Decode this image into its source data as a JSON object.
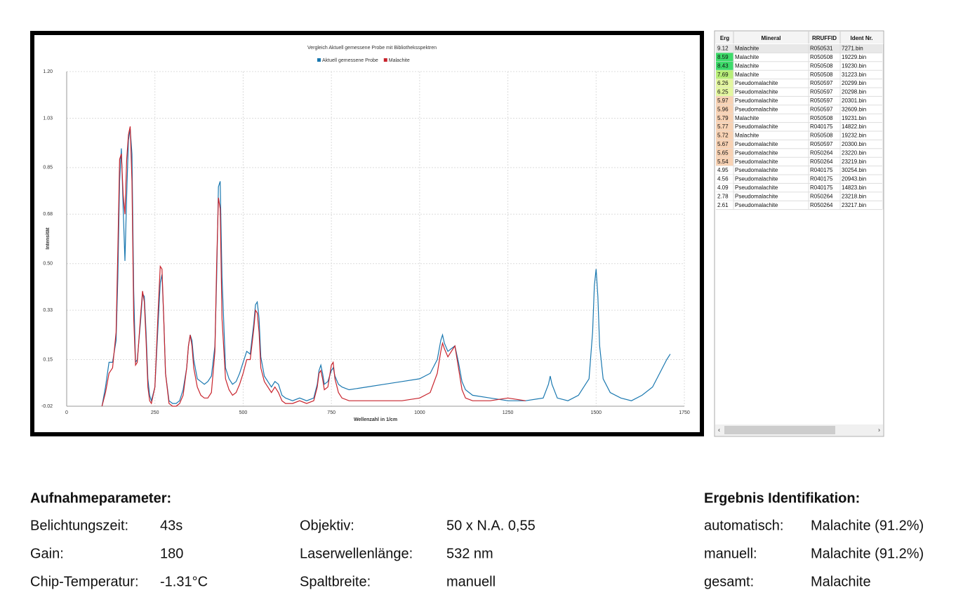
{
  "chart_data": {
    "type": "line",
    "title": "Vergleich Aktuell gemessene Probe mit Bibliotheksspektren",
    "xlabel": "Wellenzahl in 1/cm",
    "ylabel": "Intensität",
    "xlim": [
      0,
      1750
    ],
    "xticks": [
      0,
      250,
      500,
      750,
      1000,
      1250,
      1500,
      1750
    ],
    "ylim": [
      -0.02,
      1.2
    ],
    "yticks": [
      -0.02,
      0.15,
      0.33,
      {
        "value": 0.5,
        "label": "0.50"
      },
      0.68,
      0.85,
      1.03,
      {
        "value": 1.2,
        "label": "1.20"
      }
    ],
    "grid": true,
    "legend": "top",
    "x": [
      100,
      110,
      120,
      130,
      140,
      145,
      150,
      155,
      160,
      165,
      170,
      175,
      180,
      185,
      190,
      195,
      200,
      210,
      215,
      220,
      225,
      230,
      235,
      240,
      250,
      260,
      265,
      270,
      275,
      280,
      290,
      300,
      310,
      320,
      330,
      340,
      345,
      350,
      355,
      360,
      370,
      380,
      390,
      400,
      410,
      420,
      425,
      430,
      435,
      440,
      450,
      460,
      470,
      480,
      490,
      500,
      510,
      520,
      530,
      535,
      540,
      545,
      550,
      560,
      570,
      580,
      590,
      600,
      610,
      620,
      640,
      660,
      680,
      700,
      710,
      715,
      720,
      725,
      730,
      740,
      750,
      755,
      760,
      770,
      780,
      800,
      850,
      900,
      950,
      1000,
      1030,
      1050,
      1060,
      1065,
      1070,
      1080,
      1090,
      1100,
      1110,
      1120,
      1130,
      1150,
      1200,
      1250,
      1300,
      1350,
      1365,
      1370,
      1375,
      1390,
      1420,
      1450,
      1470,
      1480,
      1490,
      1495,
      1500,
      1505,
      1510,
      1520,
      1540,
      1570,
      1600,
      1630,
      1660,
      1680,
      1700,
      1710
    ],
    "series": [
      {
        "name": "Aktuell gemessene Probe",
        "color": "#1a78b0",
        "values": [
          -0.02,
          0.05,
          0.14,
          0.14,
          0.22,
          0.45,
          0.8,
          0.92,
          0.7,
          0.51,
          0.75,
          0.95,
          0.99,
          0.9,
          0.4,
          0.14,
          0.15,
          0.3,
          0.39,
          0.38,
          0.25,
          0.08,
          0.02,
          0.0,
          0.05,
          0.3,
          0.43,
          0.46,
          0.3,
          0.1,
          0.0,
          -0.01,
          -0.01,
          0.0,
          0.04,
          0.12,
          0.2,
          0.24,
          0.22,
          0.15,
          0.08,
          0.07,
          0.06,
          0.07,
          0.09,
          0.2,
          0.45,
          0.78,
          0.8,
          0.45,
          0.12,
          0.08,
          0.06,
          0.07,
          0.1,
          0.14,
          0.18,
          0.17,
          0.28,
          0.35,
          0.36,
          0.3,
          0.16,
          0.09,
          0.07,
          0.05,
          0.07,
          0.06,
          0.02,
          0.01,
          0.0,
          0.01,
          0.0,
          0.01,
          0.06,
          0.11,
          0.13,
          0.1,
          0.06,
          0.07,
          0.11,
          0.12,
          0.09,
          0.06,
          0.05,
          0.04,
          0.05,
          0.06,
          0.07,
          0.08,
          0.1,
          0.15,
          0.22,
          0.24,
          0.21,
          0.18,
          0.19,
          0.2,
          0.14,
          0.07,
          0.04,
          0.02,
          0.01,
          0.0,
          0.0,
          0.01,
          0.06,
          0.09,
          0.06,
          0.01,
          0.0,
          0.02,
          0.06,
          0.08,
          0.25,
          0.42,
          0.48,
          0.38,
          0.2,
          0.08,
          0.03,
          0.01,
          0.0,
          0.02,
          0.05,
          0.1,
          0.15,
          0.17
        ]
      },
      {
        "name": "Malachite",
        "color": "#c8232c",
        "values": [
          -0.02,
          0.03,
          0.1,
          0.12,
          0.25,
          0.55,
          0.88,
          0.9,
          0.75,
          0.68,
          0.88,
          0.97,
          1.0,
          0.8,
          0.3,
          0.13,
          0.14,
          0.32,
          0.4,
          0.36,
          0.22,
          0.05,
          0.0,
          -0.01,
          0.05,
          0.35,
          0.49,
          0.48,
          0.3,
          0.1,
          -0.01,
          -0.02,
          -0.02,
          -0.01,
          0.02,
          0.12,
          0.2,
          0.24,
          0.2,
          0.12,
          0.05,
          0.02,
          0.01,
          0.01,
          0.03,
          0.18,
          0.5,
          0.74,
          0.7,
          0.3,
          0.08,
          0.04,
          0.02,
          0.03,
          0.06,
          0.1,
          0.15,
          0.15,
          0.26,
          0.33,
          0.32,
          0.25,
          0.12,
          0.07,
          0.05,
          0.03,
          0.05,
          0.03,
          0.0,
          -0.01,
          -0.01,
          0.0,
          -0.01,
          0.0,
          0.05,
          0.1,
          0.11,
          0.08,
          0.04,
          0.05,
          0.13,
          0.14,
          0.08,
          0.03,
          0.01,
          0.0,
          0.0,
          0.0,
          0.0,
          0.01,
          0.03,
          0.1,
          0.18,
          0.21,
          0.19,
          0.16,
          0.18,
          0.2,
          0.12,
          0.04,
          0.01,
          0.0,
          0.0,
          0.01,
          0.0,
          null,
          null,
          null,
          null,
          null,
          null,
          null,
          null,
          null,
          null,
          null,
          null,
          null,
          null,
          null,
          null,
          null,
          null,
          null,
          null,
          null,
          null,
          null
        ]
      }
    ]
  },
  "table": {
    "columns": [
      "Erg",
      "Mineral",
      "RRUFFID",
      "Ident Nr."
    ],
    "rows": [
      [
        "9.12",
        "Malachite",
        "R050531",
        "7271.bin"
      ],
      [
        "8.59",
        "Malachite",
        "R050508",
        "19229.bin"
      ],
      [
        "8.43",
        "Malachite",
        "R050508",
        "19230.bin"
      ],
      [
        "7.69",
        "Malachite",
        "R050508",
        "31223.bin"
      ],
      [
        "6.26",
        "Pseudomalachite",
        "R050597",
        "20299.bin"
      ],
      [
        "6.25",
        "Pseudomalachite",
        "R050597",
        "20298.bin"
      ],
      [
        "5.97",
        "Pseudomalachite",
        "R050597",
        "20301.bin"
      ],
      [
        "5.96",
        "Pseudomalachite",
        "R050597",
        "32609.bin"
      ],
      [
        "5.79",
        "Malachite",
        "R050508",
        "19231.bin"
      ],
      [
        "5.77",
        "Pseudomalachite",
        "R040175",
        "14822.bin"
      ],
      [
        "5.72",
        "Malachite",
        "R050508",
        "19232.bin"
      ],
      [
        "5.67",
        "Pseudomalachite",
        "R050597",
        "20300.bin"
      ],
      [
        "5.65",
        "Pseudomalachite",
        "R050264",
        "23220.bin"
      ],
      [
        "5.54",
        "Pseudomalachite",
        "R050264",
        "23219.bin"
      ],
      [
        "4.95",
        "Pseudomalachite",
        "R040175",
        "30254.bin"
      ],
      [
        "4.56",
        "Pseudomalachite",
        "R040175",
        "20943.bin"
      ],
      [
        "4.09",
        "Pseudomalachite",
        "R040175",
        "14823.bin"
      ],
      [
        "2.78",
        "Pseudomalachite",
        "R050264",
        "23218.bin"
      ],
      [
        "2.61",
        "Pseudomalachite",
        "R050264",
        "23217.bin"
      ]
    ],
    "score_colors": [
      "#e8e8e8",
      "#3ddc6a",
      "#3ddc6a",
      "#b8ee78",
      "#e4f7a0",
      "#e4f7a0",
      "#f8d2b4",
      "#f8d2b4",
      "#f8d2b4",
      "#f8d2b4",
      "#f8d2b4",
      "#f8d2b4",
      "#f8d2b4",
      "#f8d2b4",
      "#ffffff",
      "#ffffff",
      "#ffffff",
      "#ffffff",
      "#ffffff"
    ]
  },
  "parameters": {
    "title": "Aufnahmeparameter:",
    "items": [
      {
        "label": "Belichtungszeit:",
        "value": "43s"
      },
      {
        "label": "Gain:",
        "value": "180"
      },
      {
        "label": "Chip-Temperatur:",
        "value": "-1.31°C"
      },
      {
        "label": "Objektiv:",
        "value": "50 x N.A. 0,55"
      },
      {
        "label": "Laserwellenlänge:",
        "value": "532 nm"
      },
      {
        "label": "Spaltbreite:",
        "value": "manuell"
      }
    ]
  },
  "result": {
    "title": "Ergebnis Identifikation:",
    "items": [
      {
        "label": "automatisch:",
        "value": "Malachite (91.2%)"
      },
      {
        "label": "manuell:",
        "value": "Malachite (91.2%)"
      },
      {
        "label": "gesamt:",
        "value": "Malachite"
      }
    ]
  }
}
